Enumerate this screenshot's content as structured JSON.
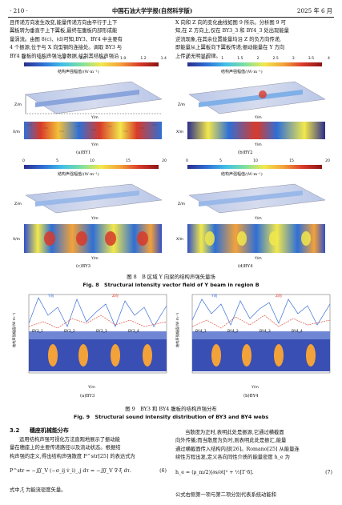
{
  "header": {
    "page_number": "· 210 ·",
    "journal": "中国石油大学学报(自然科学版)",
    "issue": "2025 年 6 月"
  },
  "top_left_text": [
    "且传递方向发生改变,能量传递方向由平行于上下",
    "翼板转为垂直于上下翼板,最终在腹板内部形成能",
    "量涡流。由图 8(c)、(d)可知,BY3、BY4 中主要有",
    "4 个振源,位于与 X 向型钢的连接处。调取 BY3 与",
    "BY4 腹板的结构声强计算数据,绘制其结构声强沿"
  ],
  "top_right_text": [
    "X 向和 Z 向的变化曲线如图 9 所示。分析图 9 可",
    "知,在 Z 方向上,仅在 BY3_3 和 BY4_3 处出现能量",
    "逆流现象,在其余位置能量均沿 Z 的负方向传递,",
    "即能量从上翼板向下翼板传递;振动能量在 Y 方向",
    "上传递无明显规律。"
  ],
  "colorbars": [
    {
      "title": "结构声强幅值/(W·m⁻¹)",
      "ticks": [
        "0",
        "0.2",
        "0.4",
        "0.6",
        "0.8",
        "1.0",
        "1.2",
        "1.4"
      ]
    },
    {
      "title": "结构声强幅值/(W·m⁻¹)",
      "ticks": [
        "0",
        "0.5",
        "1",
        "1.5",
        "2",
        "2.5",
        "3",
        "3.5",
        "4"
      ]
    },
    {
      "title": "结构声强幅值/(W·m⁻¹)",
      "ticks": [
        "0",
        "5",
        "10",
        "15",
        "20"
      ]
    },
    {
      "title": "结构声强幅值/(W·m⁻¹)",
      "ticks": [
        "0",
        "5",
        "10",
        "15",
        "20"
      ]
    }
  ],
  "fig8": {
    "subcaptions": [
      "(a)BY1",
      "(b)BY2",
      "(c)BY3",
      "(d)BY4"
    ],
    "axis_y": "Y/m",
    "axis_x": "X/m",
    "axis_z": "Z/m",
    "caption_cn": "图 8　B 区域 Y 向梁的结构声强矢量场",
    "caption_en": "Fig. 8　Structural intensity vector field of Y beam in region B"
  },
  "fig9": {
    "legend_y": "Y向",
    "legend_z": "Z向",
    "ylabel": "结构声强幅值/(W·m⁻¹)",
    "xlabel": "Y/m",
    "labels_left": [
      "BY3_1",
      "BY3_2",
      "BY3_3",
      "BY3_4"
    ],
    "labels_right": [
      "BY4_1",
      "BY4_2",
      "BY4_3",
      "BY4_4"
    ],
    "subcaptions": [
      "(a)BY3",
      "(b)BY4"
    ],
    "caption_cn": "图 9　BY3 和 BY4 腹板的结构声强分布",
    "caption_en": "Fig. 9　Structural sound intensity distribution of BY3 and BY4 webs"
  },
  "section": {
    "number": "3.2",
    "title": "穗座机械能分布"
  },
  "bottom_left_text": [
    "运用结构声强可视化方法直观地展示了振动能",
    "量在穗座上的主要传递路径以及流动状态。根据结",
    "构声强的定义,得出结构声强散度 P^str[25] 的表达式为"
  ],
  "equation_left": "P^str = −∭_V (−σ_ij v̇_i)_,j dτ = −∭_V ∇·ξ dτ.",
  "equation_left_num": "(6)",
  "bottom_left_after": "式中,ξ 为能流密度矢量。",
  "bottom_right_text": [
    "当散度为正时,表明此处是振源,它通过横截面",
    "向外传播;而当散度为负时,则表明此处是振汇,能量",
    "通过横截面传入结构内部[26]。Romano[25] 从能量连",
    "续性方程出发,定义各向同性介质的能量密度 h_e 为"
  ],
  "equation_right": "h_e = (ρ_m/2)|∂s/∂t|² + ½[Γ·δ].",
  "equation_right_num": "(7)",
  "bottom_right_after": "公式右侧第一项与第二项分别代表系统动能和"
}
